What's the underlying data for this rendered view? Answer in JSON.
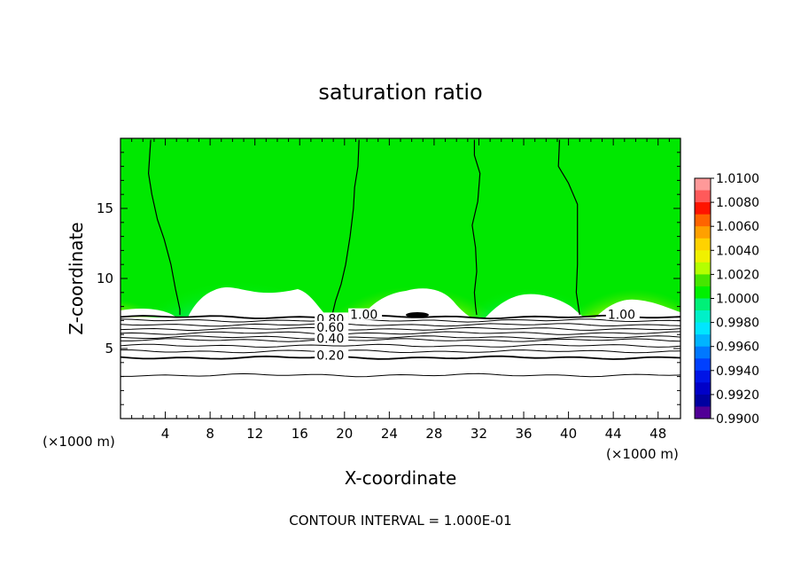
{
  "chart_data": {
    "type": "heatmap",
    "title": "saturation ratio",
    "xlabel": "X-coordinate",
    "ylabel": "Z-coordinate",
    "x_unit": "(×1000 m)",
    "y_unit": "(×1000 m)",
    "xlim": [
      0,
      50
    ],
    "ylim": [
      0,
      20
    ],
    "xticks": [
      4,
      8,
      12,
      16,
      20,
      24,
      28,
      32,
      36,
      40,
      44,
      48
    ],
    "yticks": [
      5,
      10,
      15
    ],
    "footer": "CONTOUR INTERVAL = 1.000E-01",
    "colorbar": {
      "ticks": [
        "1.0100",
        "1.0080",
        "1.0060",
        "1.0040",
        "1.0020",
        "1.0000",
        "0.9980",
        "0.9960",
        "0.9940",
        "0.9920",
        "0.9900"
      ],
      "colors": [
        "#ff9999",
        "#ff5a5a",
        "#ff1400",
        "#ff6400",
        "#ffa000",
        "#ffd200",
        "#f0f000",
        "#b4ff00",
        "#46e600",
        "#00f000",
        "#00f078",
        "#00f0c8",
        "#00e6ff",
        "#00b4ff",
        "#0078ff",
        "#0040ff",
        "#0014e6",
        "#0000c8",
        "#0000a0",
        "#500096"
      ]
    },
    "contour_labels": [
      {
        "text": "1.00",
        "x": 20.5,
        "z": 7.3
      },
      {
        "text": "1.00",
        "x": 43.5,
        "z": 7.3
      },
      {
        "text": "0.80",
        "x": 17.5,
        "z": 7.0
      },
      {
        "text": "0.60",
        "x": 17.5,
        "z": 6.4
      },
      {
        "text": "0.40",
        "x": 17.5,
        "z": 5.6
      },
      {
        "text": "0.20",
        "x": 17.5,
        "z": 4.4
      }
    ],
    "boundary_lines": [
      [
        [
          2.7,
          19.9
        ],
        [
          2.5,
          17.5
        ],
        [
          2.8,
          16
        ],
        [
          3.3,
          14.2
        ],
        [
          3.9,
          12.8
        ],
        [
          4.5,
          11
        ],
        [
          4.9,
          9.3
        ],
        [
          5.3,
          7.8
        ],
        [
          5.3,
          7.4
        ]
      ],
      [
        [
          21.3,
          19.9
        ],
        [
          21.2,
          18
        ],
        [
          20.9,
          16.5
        ],
        [
          20.8,
          15
        ],
        [
          20.5,
          13
        ],
        [
          20.1,
          11
        ],
        [
          19.7,
          9.6
        ],
        [
          19.2,
          8.4
        ],
        [
          18.9,
          7.4
        ]
      ],
      [
        [
          31.6,
          19.9
        ],
        [
          31.6,
          18.8
        ],
        [
          32.1,
          17.5
        ],
        [
          31.9,
          15.5
        ],
        [
          31.4,
          13.8
        ],
        [
          31.7,
          12.2
        ],
        [
          31.8,
          10.5
        ],
        [
          31.6,
          9
        ],
        [
          31.7,
          8
        ],
        [
          31.8,
          7.4
        ]
      ],
      [
        [
          39.2,
          19.9
        ],
        [
          39.1,
          18
        ],
        [
          40,
          16.8
        ],
        [
          40.8,
          15.3
        ],
        [
          40.8,
          13.5
        ],
        [
          40.8,
          11
        ],
        [
          40.7,
          9
        ],
        [
          41,
          7.4
        ]
      ]
    ],
    "lower_contours": [
      7.25,
      7.0,
      6.7,
      6.4,
      6.1,
      5.8,
      5.6,
      5.2,
      4.8,
      4.35,
      3.1
    ]
  }
}
